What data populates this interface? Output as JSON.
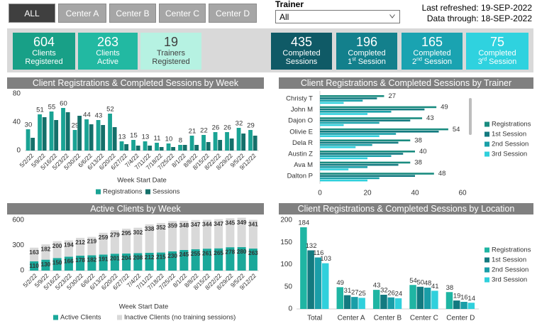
{
  "filters": {
    "buttons": [
      "ALL",
      "Center A",
      "Center B",
      "Center C",
      "Center D"
    ],
    "selected": 0
  },
  "trainer": {
    "label": "Trainer",
    "value": "All"
  },
  "refresh": {
    "last_refreshed": "Last refreshed: 19-SEP-2022",
    "data_through": "Data through: 18-SEP-2022"
  },
  "kpis": [
    {
      "value": 604,
      "lines": [
        "Clients",
        "Registered"
      ],
      "color": "#18a087",
      "text_color": "#ffffff"
    },
    {
      "value": 263,
      "lines": [
        "Clients",
        "Active"
      ],
      "color": "#22b9a2",
      "text_color": "#ffffff"
    },
    {
      "value": 19,
      "lines": [
        "Trainers",
        "Registered"
      ],
      "color": "#b6f2e2",
      "text_color": "#404040"
    },
    {
      "value": 435,
      "lines": [
        "Completed",
        "Sessions"
      ],
      "color": "#0f5a66",
      "text_color": "#ffffff"
    },
    {
      "value": 196,
      "lines": [
        "Completed"
      ],
      "ordinal": "1",
      "suffix": "st",
      "tail": "Session",
      "color": "#13808c",
      "text_color": "#ffffff"
    },
    {
      "value": 165,
      "lines": [
        "Completed"
      ],
      "ordinal": "2",
      "suffix": "nd",
      "tail": "Session",
      "color": "#1aa3b1",
      "text_color": "#ffffff"
    },
    {
      "value": 75,
      "lines": [
        "Completed"
      ],
      "ordinal": "3",
      "suffix": "rd",
      "tail": "Session",
      "color": "#2fd2df",
      "text_color": "#ffffff"
    }
  ],
  "chart_data": [
    {
      "type": "bar",
      "title": "Client Registrations & Completed Sessions by Week",
      "x_label": "Week Start Date",
      "categories": [
        "5/2/22",
        "5/9/22",
        "5/16/22",
        "5/23/22",
        "5/30/22",
        "6/6/22",
        "6/13/22",
        "6/20/22",
        "6/27/22",
        "7/4/22",
        "7/11/22",
        "7/18/22",
        "7/25/22",
        "8/1/22",
        "8/8/22",
        "8/15/22",
        "8/22/22",
        "8/29/22",
        "9/5/22",
        "9/12/22"
      ],
      "series": [
        {
          "name": "Registrations",
          "color": "#1aa394",
          "values": [
            30,
            51,
            55,
            60,
            29,
            44,
            43,
            52,
            13,
            15,
            13,
            11,
            10,
            8,
            21,
            22,
            26,
            26,
            32,
            29
          ]
        },
        {
          "name": "Sessions",
          "color": "#15706a",
          "values": [
            18,
            47,
            43,
            54,
            49,
            37,
            36,
            33,
            9,
            7,
            7,
            5,
            5,
            8,
            8,
            12,
            15,
            17,
            24,
            21
          ]
        }
      ],
      "ylim": [
        0,
        80
      ],
      "yticks": [
        0,
        40,
        80
      ]
    },
    {
      "type": "hbar",
      "title": "Client Registrations & Completed Sessions by Trainer",
      "categories": [
        "Christy T",
        "John M",
        "Dajon O",
        "Olivie E",
        "Dela R",
        "Austin Z",
        "Ava M",
        "Dalton P"
      ],
      "series": [
        {
          "name": "Registrations",
          "color": "#1a8c80",
          "values": [
            27,
            49,
            43,
            54,
            38,
            40,
            38,
            48
          ]
        },
        {
          "name": "1st Session",
          "color": "#137a80",
          "values": [
            24,
            44,
            38,
            50,
            33,
            35,
            33,
            40
          ]
        },
        {
          "name": "2nd Session",
          "color": "#1aa0a8",
          "values": [
            18,
            30,
            25,
            32,
            22,
            30,
            20,
            25
          ]
        },
        {
          "name": "3rd Session",
          "color": "#30d0dc",
          "values": [
            10,
            20,
            10,
            25,
            15,
            20,
            12,
            20
          ]
        }
      ],
      "xlim": [
        0,
        60
      ],
      "xticks": [
        0,
        20,
        40,
        60
      ]
    },
    {
      "type": "stacked_bar",
      "title": "Active Clients by Week",
      "x_label": "Week Start Date",
      "categories": [
        "5/2/22",
        "5/9/22",
        "5/16/22",
        "5/23/22",
        "5/30/22",
        "6/6/22",
        "6/13/22",
        "6/20/22",
        "6/27/22",
        "7/4/22",
        "7/11/22",
        "7/18/22",
        "7/25/22",
        "8/1/22",
        "8/8/22",
        "8/15/22",
        "8/22/22",
        "8/29/22",
        "9/5/22",
        "9/12/22"
      ],
      "series": [
        {
          "name": "Active Clients",
          "color": "#1aa89a",
          "values": [
            110,
            130,
            150,
            166,
            178,
            182,
            191,
            201,
            204,
            208,
            212,
            215,
            230,
            245,
            255,
            261,
            265,
            278,
            280,
            263
          ]
        },
        {
          "name": "Inactive Clients (no training sessions)",
          "color": "#d9d9d9",
          "values": [
            163,
            182,
            200,
            194,
            212,
            219,
            259,
            279,
            295,
            302,
            338,
            352,
            359,
            348,
            347,
            344,
            347,
            345,
            349,
            341
          ]
        }
      ],
      "ylim": [
        0,
        600
      ],
      "yticks": [
        0,
        300,
        600
      ]
    },
    {
      "type": "bar",
      "title": "Client Registrations & Completed Sessions by Location",
      "categories": [
        "Total",
        "Center A",
        "Center B",
        "Center C",
        "Center D"
      ],
      "series": [
        {
          "name": "Registrations",
          "color": "#1fb5a3",
          "values": [
            184,
            49,
            43,
            54,
            38
          ]
        },
        {
          "name": "1st Session",
          "color": "#137a80",
          "values": [
            132,
            31,
            32,
            50,
            19
          ]
        },
        {
          "name": "2nd Session",
          "color": "#1a9ea8",
          "values": [
            116,
            27,
            26,
            48,
            16
          ]
        },
        {
          "name": "3rd Session",
          "color": "#30d0dc",
          "values": [
            103,
            25,
            24,
            41,
            14
          ]
        }
      ],
      "ylim": [
        0,
        200
      ],
      "yticks": [
        0,
        50,
        100,
        150,
        200
      ]
    }
  ]
}
